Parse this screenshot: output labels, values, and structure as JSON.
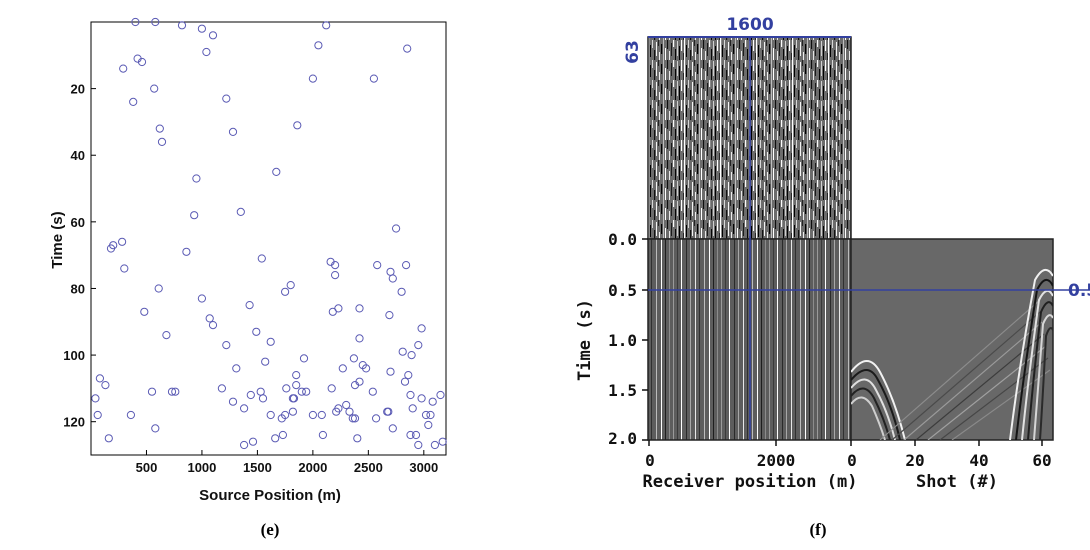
{
  "colors": {
    "marker": "#5a5ab4",
    "crosshair": "#3340a0",
    "seismic_bg": "#707070"
  },
  "captions": {
    "left": "(e)",
    "right": "(f)"
  },
  "chart_data": [
    {
      "type": "scatter",
      "xlabel": "Source Position (m)",
      "ylabel": "Time (s)",
      "xlim": [
        0,
        3200
      ],
      "ylim": [
        130,
        0
      ],
      "xticks": [
        "500",
        "1000",
        "1500",
        "2000",
        "2500",
        "3000"
      ],
      "yticks": [
        "20",
        "40",
        "60",
        "80",
        "100",
        "120"
      ],
      "grid": false,
      "x": [
        400,
        580,
        820,
        1000,
        1100,
        2050,
        2120,
        2850,
        460,
        420,
        290,
        570,
        640,
        620,
        950,
        380,
        860,
        930,
        180,
        200,
        280,
        2000,
        2550,
        1040,
        1860,
        1280,
        1220,
        1670,
        1350,
        300,
        480,
        610,
        2230,
        1850,
        1220,
        1760,
        2980,
        1310,
        1620,
        2840,
        2690,
        2400,
        2480,
        2420,
        2890,
        2160,
        1460,
        2720,
        60,
        160,
        580,
        550,
        730,
        680,
        1920,
        2090,
        2270,
        1900,
        3060,
        2900,
        2980,
        2800,
        2580,
        2200,
        2750,
        360,
        2330,
        2380,
        2540,
        2670,
        2380,
        1530,
        1750,
        2680,
        3150,
        2830,
        1620,
        3020,
        3100,
        2950,
        2880,
        1720,
        2230,
        2170,
        40,
        3170,
        2930,
        2570,
        2210,
        2300,
        1830,
        760,
        130,
        2080,
        1820,
        1380,
        1280,
        1550,
        1440,
        1380,
        1660,
        1730,
        3040,
        2360,
        2000,
        3080,
        1820,
        2880,
        1940,
        1180,
        1850,
        2420,
        80,
        2860,
        2700,
        2450,
        1570,
        2370,
        2810,
        2950,
        2420,
        1490,
        1100,
        1070,
        2180,
        1430,
        1000,
        1750,
        1800,
        2720,
        2700,
        2200,
        1540
      ],
      "y": [
        0,
        0,
        1,
        2,
        4,
        7,
        1,
        8,
        12,
        11,
        14,
        20,
        36,
        32,
        47,
        24,
        69,
        58,
        68,
        67,
        66,
        17,
        17,
        9,
        31,
        33,
        23,
        45,
        57,
        74,
        87,
        80,
        86,
        106,
        97,
        110,
        92,
        104,
        118,
        73,
        88,
        125,
        104,
        86,
        100,
        72,
        126,
        122,
        118,
        125,
        122,
        111,
        111,
        94,
        101,
        124,
        104,
        111,
        118,
        116,
        113,
        81,
        73,
        76,
        62,
        118,
        117,
        119,
        111,
        117,
        109,
        111,
        118,
        117,
        112,
        108,
        96,
        118,
        127,
        127,
        124,
        119,
        116,
        110,
        113,
        126,
        124,
        119,
        117,
        115,
        113,
        111,
        109,
        118,
        117,
        116,
        114,
        113,
        112,
        127,
        125,
        124,
        121,
        119,
        118,
        114,
        113,
        112,
        111,
        110,
        109,
        108,
        107,
        106,
        105,
        103,
        102,
        101,
        99,
        97,
        95,
        93,
        91,
        89,
        87,
        85,
        83,
        81,
        79,
        77,
        75,
        73,
        71
      ]
    },
    {
      "type": "heatmap",
      "xlabel": "Receiver position (m)",
      "ylabel": "Time (s)",
      "xticks": [
        "0",
        "2000",
        "0"
      ],
      "yticks": [
        "0.0",
        "0.5",
        "1.0",
        "1.5",
        "2.0"
      ],
      "crosshair_labels": {
        "x": "1600",
        "y": "0.5",
        "top_left": "63"
      }
    },
    {
      "type": "heatmap",
      "xlabel": "Shot (#)",
      "xticks": [
        "20",
        "40",
        "60"
      ]
    }
  ]
}
